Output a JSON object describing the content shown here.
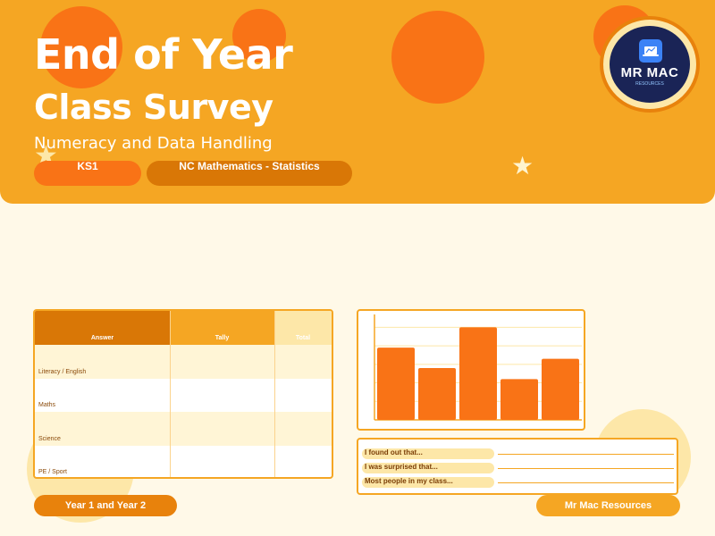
{
  "header": {
    "title_line1": "End of Year",
    "title_line2": "Class Survey",
    "subtitle": "Numeracy and Data Handling",
    "tags": [
      "KS1",
      "NC Mathematics - Statistics"
    ]
  },
  "logo": {
    "name": "MR MAC",
    "sub": "RESOURCES"
  },
  "table": {
    "headers": [
      "Answer",
      "Tally",
      "Total"
    ],
    "rows": [
      {
        "answer": "Literacy / English"
      },
      {
        "answer": "Maths"
      },
      {
        "answer": "Science"
      },
      {
        "answer": "PE / Sport"
      }
    ]
  },
  "chart_data": {
    "type": "bar",
    "categories": [
      "",
      "",
      "",
      "",
      ""
    ],
    "values": [
      7.8,
      5.6,
      10,
      4.4,
      6.6
    ],
    "title": "",
    "xlabel": "",
    "ylabel": "",
    "ylim": [
      0,
      11
    ],
    "grid": true,
    "bar_color": "#f97316"
  },
  "reflection": {
    "prompts": [
      "I found out that...",
      "I was surprised that...",
      "Most people in my class..."
    ]
  },
  "footer": {
    "left": "Year 1 and Year 2",
    "right": "Mr Mac Resources"
  },
  "colors": {
    "header": "#f5a623",
    "accent": "#f97316",
    "dark_accent": "#d97706",
    "background": "#fff9e8"
  }
}
